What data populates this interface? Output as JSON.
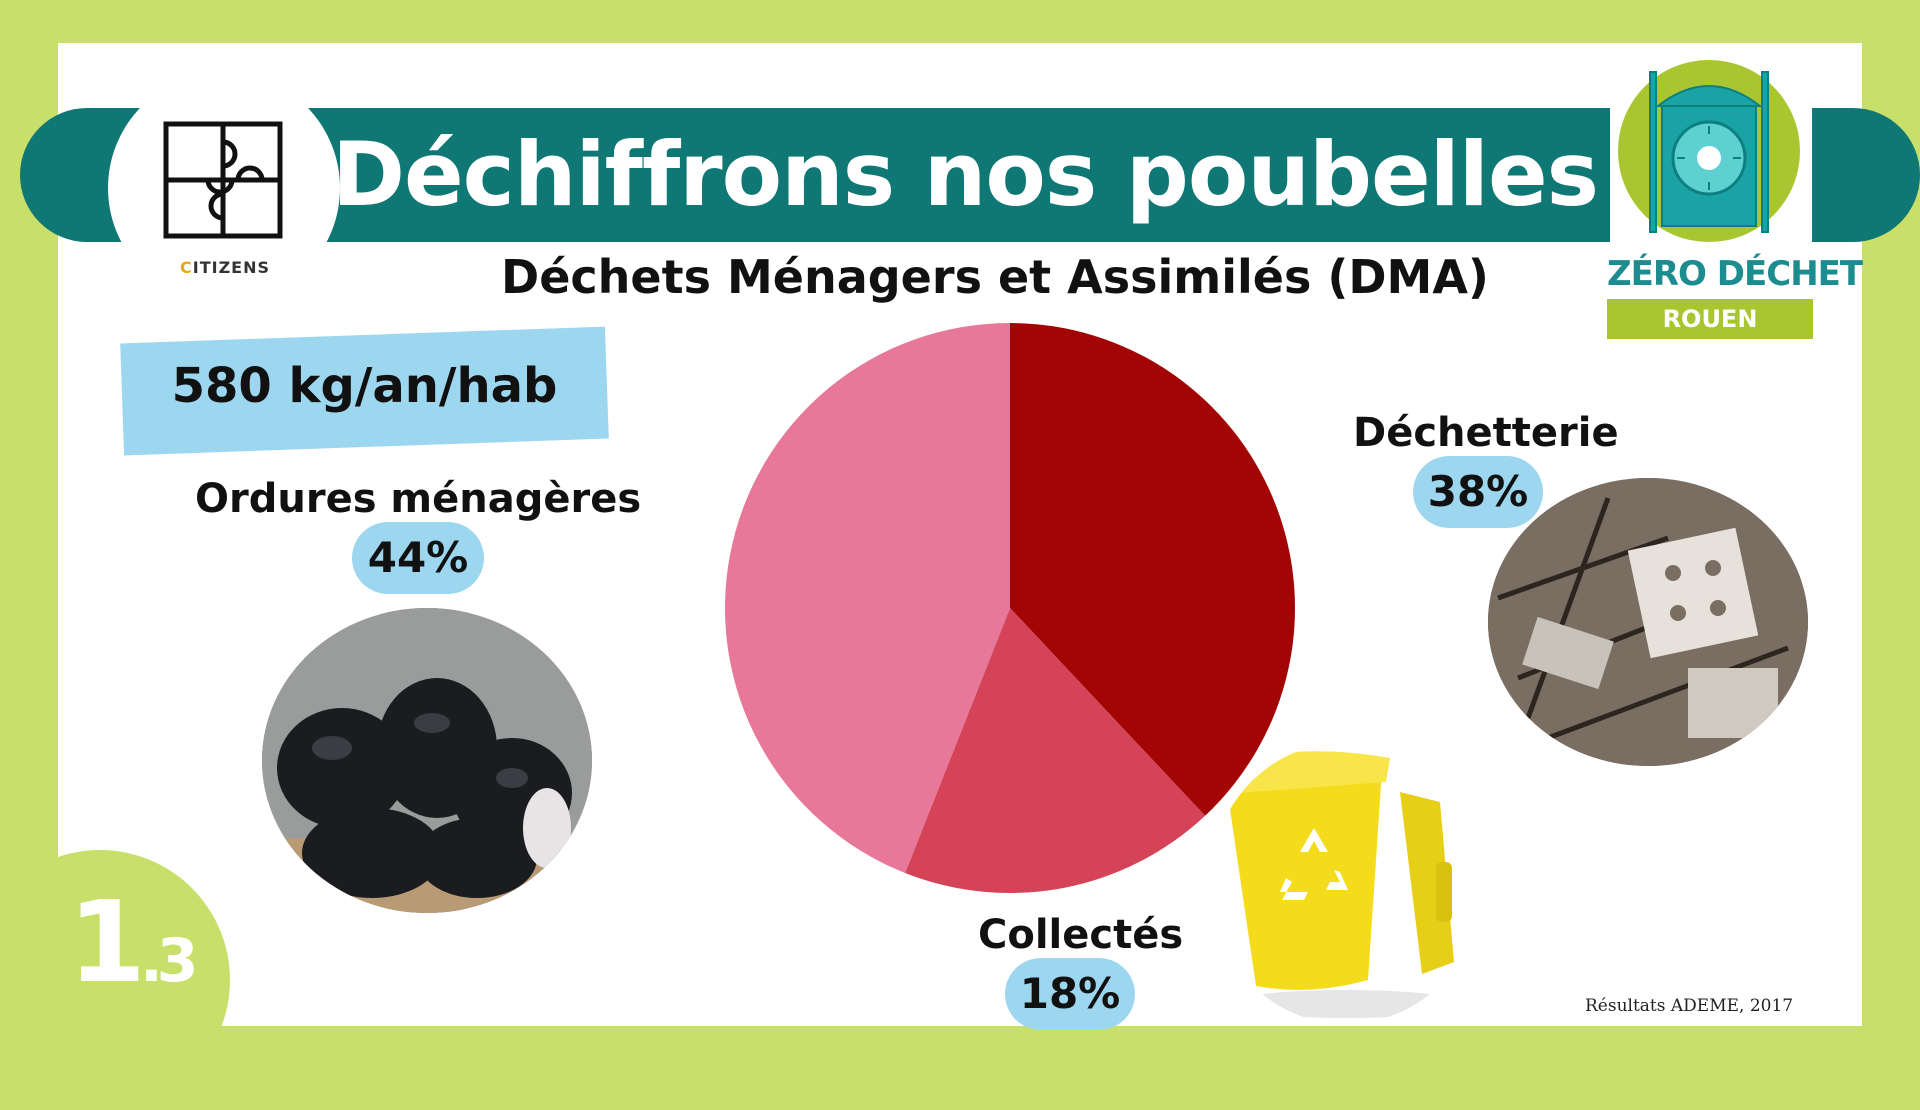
{
  "header": {
    "title": "Déchiffrons nos poubelles",
    "subtitle": "Déchets Ménagers et Assimilés (DMA)"
  },
  "logo_left": {
    "brand": "ITIZENS",
    "brand_initial": "C"
  },
  "logo_right": {
    "title": "ZÉRO DÉCHET",
    "subtitle": "ROUEN"
  },
  "stat": {
    "text": "580 kg/an/hab"
  },
  "slide_number": {
    "main": "1",
    "sub": ".3"
  },
  "source": "Résultats ADEME, 2017",
  "colors": {
    "background": "#c8e06a",
    "banner": "#0f7774",
    "badge": "#9cd7ef",
    "slice_dechetterie": "#a30404",
    "slice_collectes": "#d44358",
    "slice_ordures": "#e8789a"
  },
  "chart_data": {
    "type": "pie",
    "title": "Déchets Ménagers et Assimilés (DMA)",
    "slices": [
      {
        "name": "Déchetterie",
        "value": 38,
        "label": "38%",
        "color": "#a30404"
      },
      {
        "name": "Collectés",
        "value": 18,
        "label": "18%",
        "color": "#d44358"
      },
      {
        "name": "Ordures ménagères",
        "value": 44,
        "label": "44%",
        "color": "#e8789a"
      }
    ],
    "start_angle": "12 o'clock",
    "direction": "clockwise"
  },
  "icons": [
    "puzzle-icon",
    "clock-tower-icon",
    "recycle-icon"
  ]
}
